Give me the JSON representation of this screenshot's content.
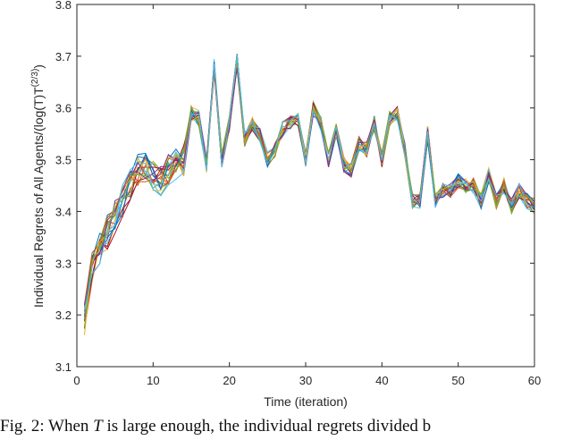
{
  "chart_data": {
    "type": "line",
    "title": "",
    "xlabel": "Time (iteration)",
    "ylabel": "Individual Regrets of All Agents/(log(T)T^(2/3))",
    "ylabel_parts": {
      "main": "Individual Regrets of All Agents/(log(T)T",
      "sup": "(2/3)",
      "tail": ")"
    },
    "xlim": [
      0,
      60
    ],
    "ylim": [
      3.1,
      3.8
    ],
    "xticks": [
      0,
      10,
      20,
      30,
      40,
      50,
      60
    ],
    "yticks": [
      3.1,
      3.2,
      3.3,
      3.4,
      3.5,
      3.6,
      3.7,
      3.8
    ],
    "xtick_labels": [
      "0",
      "10",
      "20",
      "30",
      "40",
      "50",
      "60"
    ],
    "ytick_labels": [
      "3.1",
      "3.2",
      "3.3",
      "3.4",
      "3.5",
      "3.6",
      "3.7",
      "3.8"
    ],
    "grid": false,
    "legend": null,
    "num_series": 20,
    "series_note": "Many agents (overlapping lines, MATLAB default color order); values below are the approximate common trajectory shared by all agents",
    "x": [
      1,
      2,
      3,
      4,
      5,
      6,
      7,
      8,
      9,
      10,
      11,
      12,
      13,
      14,
      15,
      16,
      17,
      18,
      19,
      20,
      21,
      22,
      23,
      24,
      25,
      26,
      27,
      28,
      29,
      30,
      31,
      32,
      33,
      34,
      35,
      36,
      37,
      38,
      39,
      40,
      41,
      42,
      43,
      44,
      45,
      46,
      47,
      48,
      49,
      50,
      51,
      52,
      53,
      54,
      55,
      56,
      57,
      58,
      59,
      60
    ],
    "mean_values": [
      3.19,
      3.29,
      3.33,
      3.36,
      3.39,
      3.42,
      3.45,
      3.48,
      3.49,
      3.47,
      3.46,
      3.48,
      3.49,
      3.5,
      3.59,
      3.58,
      3.49,
      3.68,
      3.5,
      3.57,
      3.69,
      3.54,
      3.57,
      3.55,
      3.5,
      3.52,
      3.56,
      3.57,
      3.58,
      3.5,
      3.6,
      3.57,
      3.5,
      3.56,
      3.49,
      3.48,
      3.53,
      3.52,
      3.57,
      3.5,
      3.58,
      3.59,
      3.52,
      3.42,
      3.42,
      3.55,
      3.42,
      3.44,
      3.44,
      3.46,
      3.45,
      3.45,
      3.42,
      3.47,
      3.42,
      3.45,
      3.41,
      3.44,
      3.42,
      3.41
    ],
    "spread": 0.015,
    "colors": [
      "#0072BD",
      "#D95319",
      "#EDB120",
      "#7E2F8E",
      "#77AC30",
      "#4DBEEE",
      "#A2142F"
    ]
  },
  "figure": {
    "caption_prefix": "Fig. 2: When ",
    "caption_var": "T",
    "caption_suffix": " is large enough, the individual regrets divided b"
  }
}
